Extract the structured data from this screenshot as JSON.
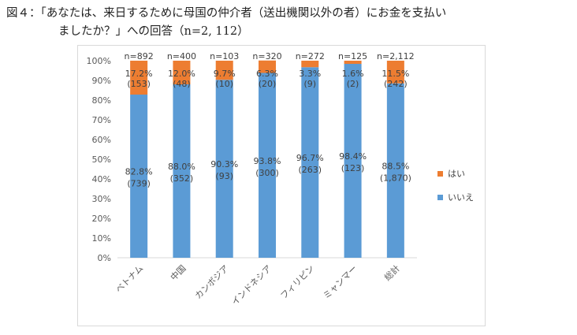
{
  "title": {
    "line1": "図４：「あなたは、来日するために母国の仲介者（送出機関以外の者）にお金を支払い",
    "line2": "ましたか？」への回答（n=2, 112）"
  },
  "colors": {
    "yes": "#ED7D31",
    "no": "#5B9BD5"
  },
  "chart_data": {
    "type": "bar",
    "stacked": true,
    "percent": true,
    "categories": [
      "ベトナム",
      "中国",
      "カンボジア",
      "インドネシア",
      "フィリピン",
      "ミャンマー",
      "総計"
    ],
    "n_labels": [
      "n=892",
      "n=400",
      "n=103",
      "n=320",
      "n=272",
      "n=125",
      "n=2,112"
    ],
    "series": [
      {
        "name": "いいえ",
        "values": [
          82.8,
          88.0,
          90.3,
          93.8,
          96.7,
          98.4,
          88.5
        ],
        "pct_labels": [
          "82.8%",
          "88.0%",
          "90.3%",
          "93.8%",
          "96.7%",
          "98.4%",
          "88.5%"
        ],
        "count_labels": [
          "(739)",
          "(352)",
          "(93)",
          "(300)",
          "(263)",
          "(123)",
          "(1,870)"
        ]
      },
      {
        "name": "はい",
        "values": [
          17.2,
          12.0,
          9.7,
          6.3,
          3.3,
          1.6,
          11.5
        ],
        "pct_labels": [
          "17.2%",
          "12.0%",
          "9.7%",
          "6.3%",
          "3.3%",
          "1.6%",
          "11.5%"
        ],
        "count_labels": [
          "(153)",
          "(48)",
          "(10)",
          "(20)",
          "(9)",
          "(2)",
          "(242)"
        ]
      }
    ],
    "ylim": [
      0,
      100
    ],
    "yticks": [
      "0%",
      "10%",
      "20%",
      "30%",
      "40%",
      "50%",
      "60%",
      "70%",
      "80%",
      "90%",
      "100%"
    ],
    "legend": [
      "はい",
      "いいえ"
    ],
    "legend_position": "right",
    "grid": false
  }
}
